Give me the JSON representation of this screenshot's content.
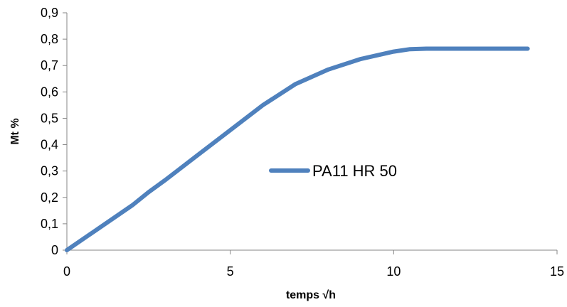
{
  "chart_data": {
    "type": "line",
    "xlabel": "temps √h",
    "ylabel": "Mt %",
    "xlim": [
      0,
      15
    ],
    "ylim": [
      0,
      0.9
    ],
    "x_ticks": [
      0,
      5,
      10,
      15
    ],
    "x_tick_labels": [
      "0",
      "5",
      "10",
      "15"
    ],
    "y_ticks": [
      0,
      0.1,
      0.2,
      0.3,
      0.4,
      0.5,
      0.6,
      0.7,
      0.8,
      0.9
    ],
    "y_tick_labels": [
      "0",
      "0,1",
      "0,2",
      "0,3",
      "0,4",
      "0,5",
      "0,6",
      "0,7",
      "0,8",
      "0,9"
    ],
    "grid": false,
    "legend_position": "center",
    "series": [
      {
        "name": "PA11 HR 50",
        "color": "#4F81BD",
        "x": [
          0,
          1,
          2,
          2.5,
          3,
          4,
          5,
          6,
          7,
          8,
          9,
          10,
          10.5,
          11,
          12,
          13,
          14.1
        ],
        "y": [
          0,
          0.085,
          0.17,
          0.22,
          0.265,
          0.36,
          0.455,
          0.55,
          0.63,
          0.685,
          0.725,
          0.753,
          0.762,
          0.764,
          0.764,
          0.764,
          0.764
        ]
      }
    ]
  }
}
